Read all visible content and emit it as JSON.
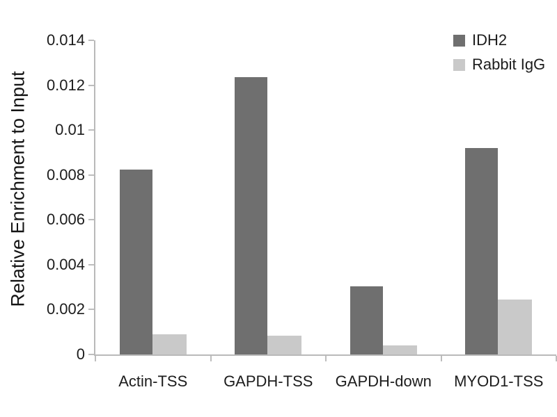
{
  "chart_data": {
    "type": "bar",
    "title": "",
    "xlabel": "",
    "ylabel": "Relative Enrichment to Input",
    "categories": [
      "Actin-TSS",
      "GAPDH-TSS",
      "GAPDH-down",
      "MYOD1-TSS"
    ],
    "series": [
      {
        "name": "IDH2",
        "color": "#6f6f6f",
        "values": [
          0.00825,
          0.01235,
          0.00305,
          0.0092
        ]
      },
      {
        "name": "Rabbit IgG",
        "color": "#c9c9c9",
        "values": [
          0.0009,
          0.00085,
          0.0004,
          0.00245
        ]
      }
    ],
    "ylim": [
      0,
      0.014
    ],
    "ytick_step": 0.002,
    "ytick_labels": [
      "0",
      "0.002",
      "0.004",
      "0.006",
      "0.008",
      "0.01",
      "0.012",
      "0.014"
    ],
    "grid": "off",
    "legend_position": "top-right",
    "axis_color": "#bdbdbd"
  }
}
